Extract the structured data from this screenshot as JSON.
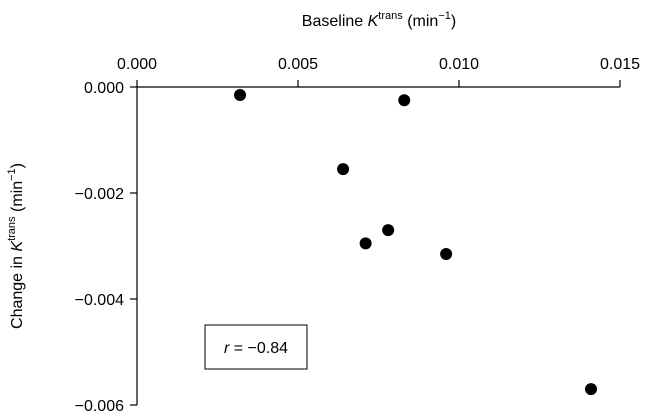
{
  "chart_data": {
    "type": "scatter",
    "xlabel": {
      "prefix": "Baseline ",
      "symbol": "K",
      "superscript": "trans",
      "unit_open": " (min",
      "unit_exp": "−1",
      "unit_close": ")"
    },
    "ylabel": {
      "prefix": "Change in ",
      "symbol": "K",
      "superscript": "trans",
      "unit_open": " (min",
      "unit_exp": "−1",
      "unit_close": ")"
    },
    "xlim": [
      0.0,
      0.015
    ],
    "ylim": [
      -0.006,
      0.0
    ],
    "x_axis_position": "top",
    "x_ticks": [
      0.0,
      0.005,
      0.01,
      0.015
    ],
    "x_tick_labels": [
      "0.000",
      "0.005",
      "0.010",
      "0.015"
    ],
    "y_ticks": [
      0.0,
      -0.002,
      -0.004,
      -0.006
    ],
    "y_tick_labels": [
      "0.000",
      "−0.002",
      "−0.004",
      "−0.006"
    ],
    "grid": false,
    "points": [
      {
        "x": 0.0032,
        "y": -0.00015
      },
      {
        "x": 0.0083,
        "y": -0.00025
      },
      {
        "x": 0.0064,
        "y": -0.00155
      },
      {
        "x": 0.0071,
        "y": -0.00295
      },
      {
        "x": 0.0078,
        "y": -0.0027
      },
      {
        "x": 0.0096,
        "y": -0.00315
      },
      {
        "x": 0.0141,
        "y": -0.0057
      }
    ],
    "annotation": {
      "variable": "r",
      "text": " = −0.84"
    },
    "marker_color": "#000000"
  }
}
